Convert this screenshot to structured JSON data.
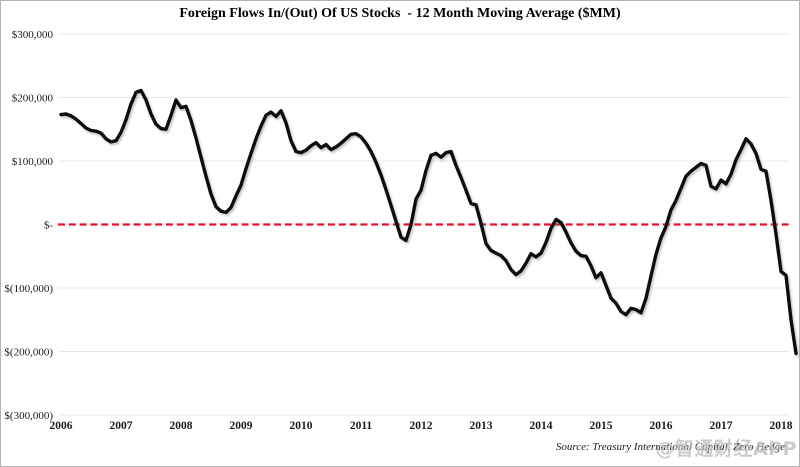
{
  "title": "Foreign Flows In/(Out) Of US Stocks  - 12 Month Moving Average ($MM)",
  "source_note": "Source: Treasury International Capital, Zero Hedge",
  "watermark": "@智通财经APP",
  "colors": {
    "line": "#0b0b0b",
    "zero_line": "#e8112d",
    "gridline": "#e7e7e7",
    "label": "#1a1a1a"
  },
  "chart_data": {
    "type": "line",
    "title": "Foreign Flows In/(Out) Of US Stocks - 12 Month Moving Average ($MM)",
    "xlabel": "",
    "ylabel": "$MM",
    "ylim": [
      -300000,
      300000
    ],
    "grid": "horizontal",
    "legend": "none",
    "zero_reference_line": true,
    "x_tick_labels": [
      "2006",
      "2007",
      "2008",
      "2009",
      "2010",
      "2011",
      "2012",
      "2013",
      "2014",
      "2015",
      "2016",
      "2017",
      "2018"
    ],
    "y_tick_labels": [
      "$300,000",
      "$200,000",
      "$100,000",
      "$-",
      "$(100,000)",
      "$(200,000)",
      "$(300,000)"
    ],
    "y_tick_values": [
      300000,
      200000,
      100000,
      0,
      -100000,
      -200000,
      -300000
    ],
    "x_start": "2006-01",
    "x_end": "2018-04",
    "points_per_year": 12,
    "series": [
      {
        "name": "Foreign flows into US stocks, 12-month moving average ($MM)",
        "monthly_values": [
          173000,
          174000,
          171000,
          166000,
          159000,
          152000,
          148000,
          147000,
          144000,
          135000,
          130000,
          132000,
          145000,
          165000,
          190000,
          208000,
          211000,
          196000,
          174000,
          158000,
          151000,
          150000,
          172000,
          196000,
          184000,
          186000,
          164000,
          136000,
          106000,
          76000,
          48000,
          28000,
          21000,
          19000,
          27000,
          45000,
          62000,
          88000,
          112000,
          135000,
          155000,
          172000,
          177000,
          170000,
          179000,
          160000,
          132000,
          115000,
          113000,
          117000,
          124000,
          129000,
          121000,
          126000,
          118000,
          122000,
          128000,
          135000,
          142000,
          143000,
          138000,
          128000,
          115000,
          98000,
          78000,
          55000,
          30000,
          5000,
          -20000,
          -25000,
          0,
          40000,
          54000,
          85000,
          109000,
          112000,
          106000,
          113000,
          115000,
          93000,
          74000,
          54000,
          33000,
          31000,
          2000,
          -30000,
          -41000,
          -45000,
          -49000,
          -57000,
          -71000,
          -79000,
          -73000,
          -61000,
          -46000,
          -51000,
          -45000,
          -28000,
          -6000,
          8000,
          3000,
          -12000,
          -29000,
          -42000,
          -49000,
          -50000,
          -65000,
          -84000,
          -76000,
          -96000,
          -116000,
          -124000,
          -137000,
          -142000,
          -132000,
          -134000,
          -139000,
          -116000,
          -81000,
          -47000,
          -21000,
          -3000,
          23000,
          38000,
          57000,
          76000,
          84000,
          90000,
          96000,
          93000,
          60000,
          56000,
          70000,
          64000,
          79000,
          102000,
          118000,
          135000,
          127000,
          112000,
          87000,
          84000,
          38000,
          -15000,
          -74000,
          -80000,
          -150000,
          -203000
        ]
      }
    ]
  }
}
